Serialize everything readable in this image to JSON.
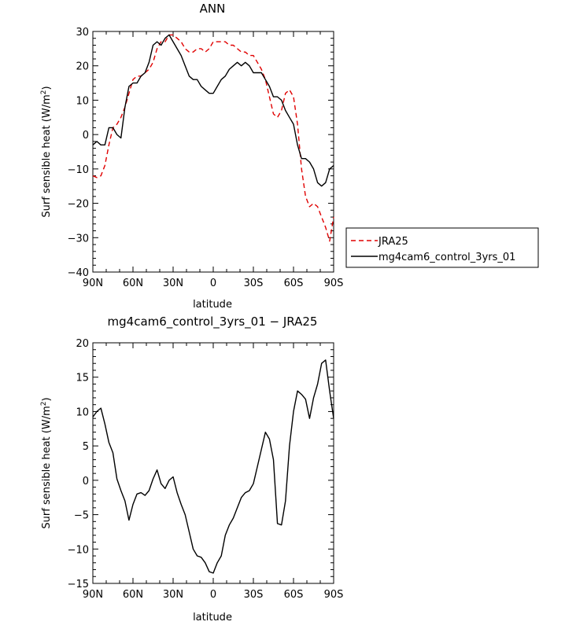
{
  "chart_data": [
    {
      "type": "line",
      "title": "ANN",
      "xlabel": "latitude",
      "ylabel": "Surf sensible heat",
      "ylabel_unit": "(W/m",
      "ylabel_sup": "2",
      "ylabel_close": ")",
      "xlim": [
        90,
        -90
      ],
      "ylim": [
        -40,
        30
      ],
      "x_ticks": [
        90,
        60,
        30,
        0,
        -30,
        -60,
        -90
      ],
      "x_tick_labels": [
        "90N",
        "60N",
        "30N",
        "0",
        "30S",
        "60S",
        "90S"
      ],
      "y_ticks": [
        -40,
        -30,
        -20,
        -10,
        0,
        10,
        20,
        30
      ],
      "y_tick_labels": [
        "−40",
        "−30",
        "−20",
        "−10",
        "0",
        "10",
        "20",
        "30"
      ],
      "legend_position": "right",
      "series": [
        {
          "name": "JRA25",
          "color": "#e00000",
          "style": "dashed",
          "x": [
            90,
            87,
            84,
            81,
            78,
            75,
            72,
            69,
            66,
            63,
            60,
            57,
            54,
            51,
            48,
            45,
            42,
            39,
            36,
            33,
            30,
            27,
            24,
            21,
            18,
            15,
            12,
            9,
            6,
            3,
            0,
            -3,
            -6,
            -9,
            -12,
            -15,
            -18,
            -21,
            -24,
            -27,
            -30,
            -33,
            -36,
            -39,
            -42,
            -45,
            -48,
            -51,
            -54,
            -57,
            -60,
            -63,
            -66,
            -69,
            -72,
            -75,
            -78,
            -81,
            -84,
            -87,
            -90
          ],
          "y": [
            -12,
            -12.5,
            -12,
            -9,
            -3,
            2,
            3,
            5,
            8,
            12,
            16,
            17,
            17,
            18,
            19,
            21,
            25,
            27,
            27,
            29,
            29,
            28,
            27,
            25,
            24,
            24,
            25,
            25,
            24,
            25,
            27,
            27,
            27,
            27,
            26,
            26,
            25,
            24,
            24,
            23,
            23,
            21,
            19,
            16,
            11,
            6,
            5,
            7,
            12,
            13,
            11,
            3,
            -10,
            -18,
            -21,
            -20,
            -21,
            -24,
            -27,
            -31,
            -24
          ]
        },
        {
          "name": "mg4cam6_control_3yrs_01",
          "color": "#000000",
          "style": "solid",
          "x": [
            90,
            87,
            84,
            81,
            78,
            75,
            72,
            69,
            66,
            63,
            60,
            57,
            54,
            51,
            48,
            45,
            42,
            39,
            36,
            33,
            30,
            27,
            24,
            21,
            18,
            15,
            12,
            9,
            6,
            3,
            0,
            -3,
            -6,
            -9,
            -12,
            -15,
            -18,
            -21,
            -24,
            -27,
            -30,
            -33,
            -36,
            -39,
            -42,
            -45,
            -48,
            -51,
            -54,
            -57,
            -60,
            -63,
            -66,
            -69,
            -72,
            -75,
            -78,
            -81,
            -84,
            -87,
            -90
          ],
          "y": [
            -3,
            -2,
            -3,
            -3,
            2,
            2,
            0,
            -1,
            8,
            14,
            15,
            15,
            17,
            18,
            21,
            26,
            27,
            26,
            28,
            29,
            27,
            25,
            23,
            20,
            17,
            16,
            16,
            14,
            13,
            12,
            12,
            14,
            16,
            17,
            19,
            20,
            21,
            20,
            21,
            20,
            18,
            18,
            18,
            16,
            14,
            11,
            11,
            10,
            7,
            5,
            3,
            -3,
            -7,
            -7,
            -8,
            -10,
            -14,
            -15,
            -14,
            -10,
            -9
          ]
        }
      ]
    },
    {
      "type": "line",
      "title": "mg4cam6_control_3yrs_01 − JRA25",
      "xlabel": "latitude",
      "ylabel": "Surf sensible heat",
      "ylabel_unit": "(W/m",
      "ylabel_sup": "2",
      "ylabel_close": ")",
      "xlim": [
        90,
        -90
      ],
      "ylim": [
        -15,
        20
      ],
      "x_ticks": [
        90,
        60,
        30,
        0,
        -30,
        -60,
        -90
      ],
      "x_tick_labels": [
        "90N",
        "60N",
        "30N",
        "0",
        "30S",
        "60S",
        "90S"
      ],
      "y_ticks": [
        -15,
        -10,
        -5,
        0,
        5,
        10,
        15,
        20
      ],
      "y_tick_labels": [
        "−15",
        "−10",
        "−5",
        "0",
        "5",
        "10",
        "15",
        "20"
      ],
      "series": [
        {
          "color": "#000000",
          "style": "solid",
          "x": [
            90,
            87,
            84,
            81,
            78,
            75,
            72,
            69,
            66,
            63,
            60,
            57,
            54,
            51,
            48,
            45,
            42,
            39,
            36,
            33,
            30,
            27,
            24,
            21,
            18,
            15,
            12,
            9,
            6,
            3,
            0,
            -3,
            -6,
            -9,
            -12,
            -15,
            -18,
            -21,
            -24,
            -27,
            -30,
            -33,
            -36,
            -39,
            -42,
            -45,
            -48,
            -51,
            -54,
            -57,
            -60,
            -63,
            -66,
            -69,
            -72,
            -75,
            -78,
            -81,
            -84,
            -87,
            -90
          ],
          "y": [
            9.2,
            10,
            10.5,
            8.2,
            5.5,
            4,
            0.2,
            -1.5,
            -3,
            -5.8,
            -3.5,
            -2,
            -1.8,
            -2.2,
            -1.5,
            0.2,
            1.5,
            -0.5,
            -1.2,
            0,
            0.5,
            -1.8,
            -3.5,
            -5,
            -7.5,
            -10,
            -11,
            -11.2,
            -12,
            -13.3,
            -13.5,
            -12,
            -11,
            -8,
            -6.5,
            -5.5,
            -4,
            -2.5,
            -1.8,
            -1.5,
            -0.5,
            2,
            4.5,
            7,
            6,
            3,
            -6.3,
            -6.5,
            -3,
            5,
            10,
            13,
            12.5,
            11.8,
            9,
            12,
            14,
            17,
            17.5,
            13,
            9
          ]
        }
      ]
    }
  ]
}
